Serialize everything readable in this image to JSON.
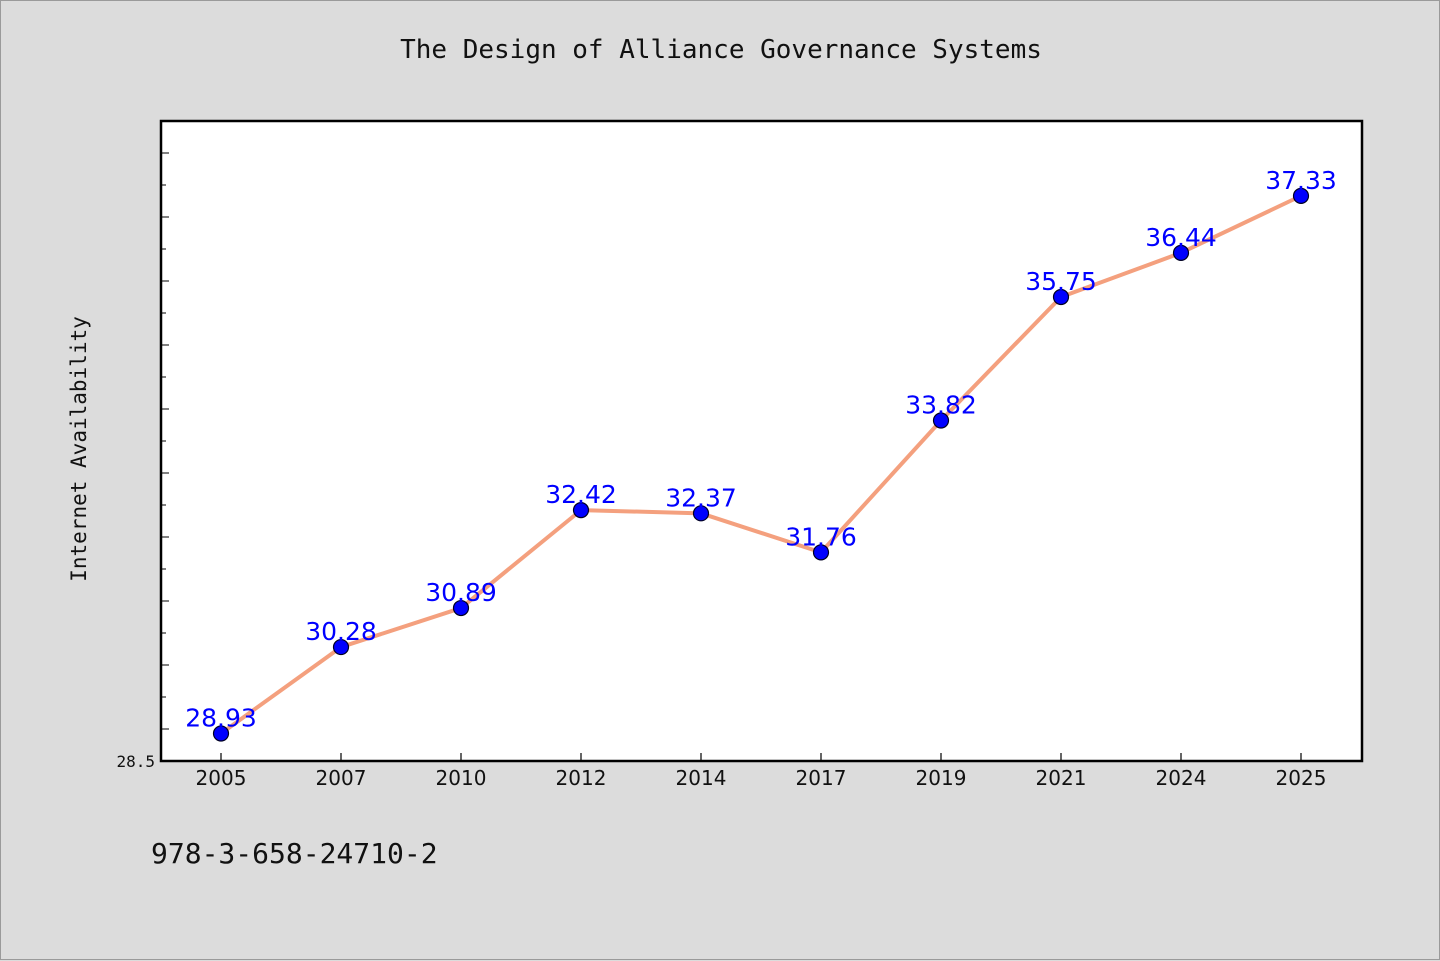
{
  "chart_data": {
    "type": "line",
    "title": "The Design of Alliance Governance Systems",
    "xlabel": "",
    "ylabel": "Internet Availability",
    "categories": [
      "2005",
      "2007",
      "2010",
      "2012",
      "2014",
      "2017",
      "2019",
      "2021",
      "2024",
      "2025"
    ],
    "series": [
      {
        "values": [
          28.93,
          30.28,
          30.89,
          32.42,
          32.37,
          31.76,
          33.82,
          35.75,
          36.44,
          37.33
        ],
        "data_labels": [
          "28.93",
          "30.28",
          "30.89",
          "32.42",
          "32.37",
          "31.76",
          "33.82",
          "35.75",
          "36.44",
          "37.33"
        ]
      }
    ],
    "ylim": [
      28.5,
      38.5
    ],
    "yticks": [
      28.5
    ],
    "ytick_labels": [
      "28.5"
    ],
    "grid": false,
    "line_color": "#f4a07e",
    "marker_color": "#0000ff",
    "label_color": "#0000ff"
  },
  "footer": {
    "isbn": "978-3-658-24710-2"
  }
}
